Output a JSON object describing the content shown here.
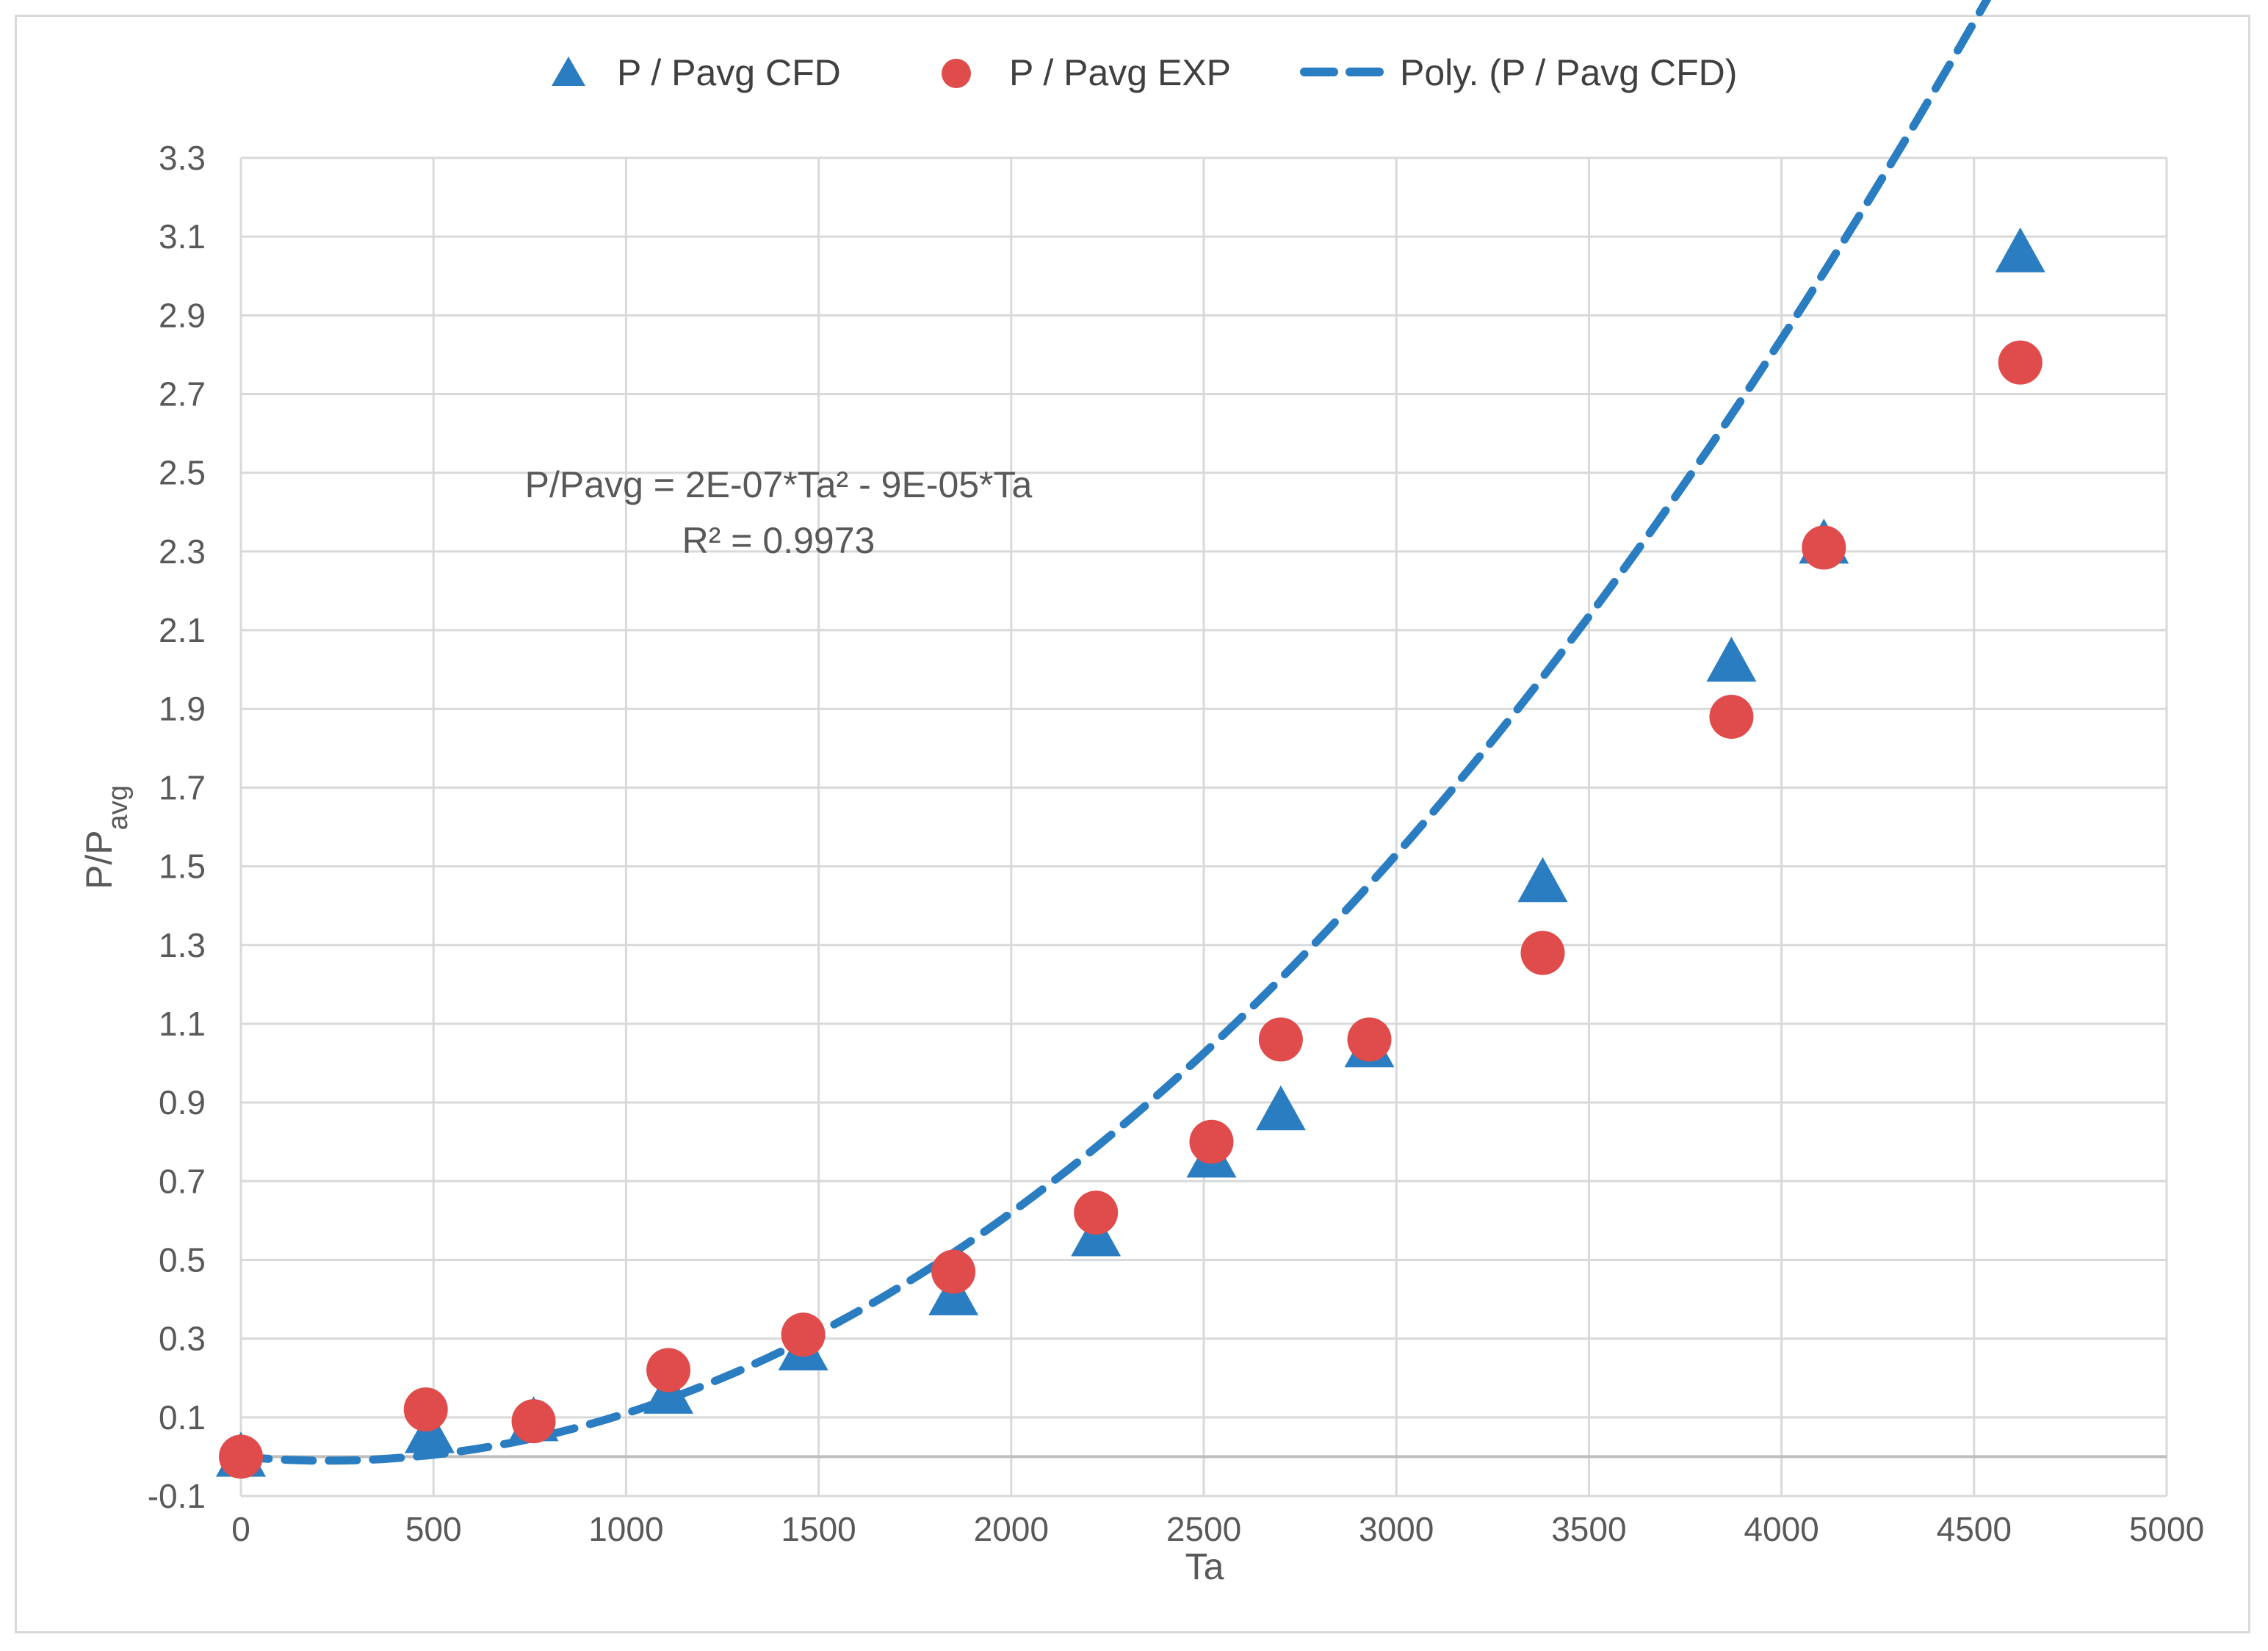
{
  "chart_data": {
    "type": "scatter",
    "title": "",
    "xlabel": "Ta",
    "ylabel": "P/P",
    "ylabel_sub": "avg",
    "xlim": [
      0,
      5000
    ],
    "ylim": [
      -0.1,
      3.3
    ],
    "x_ticks": [
      0,
      500,
      1000,
      1500,
      2000,
      2500,
      3000,
      3500,
      4000,
      4500,
      5000
    ],
    "y_ticks": [
      -0.1,
      0.1,
      0.3,
      0.5,
      0.7,
      0.9,
      1.1,
      1.3,
      1.5,
      1.7,
      1.9,
      2.1,
      2.3,
      2.5,
      2.7,
      2.9,
      3.1,
      3.3
    ],
    "grid": true,
    "legend_position": "top",
    "series": [
      {
        "name": "P / Pavg CFD",
        "marker": "triangle",
        "color": "#2a7dc1",
        "points": [
          [
            0,
            0.0
          ],
          [
            490,
            0.06
          ],
          [
            760,
            0.09
          ],
          [
            1110,
            0.16
          ],
          [
            1460,
            0.27
          ],
          [
            1850,
            0.41
          ],
          [
            2220,
            0.56
          ],
          [
            2520,
            0.76
          ],
          [
            2700,
            0.88
          ],
          [
            2930,
            1.04
          ],
          [
            3380,
            1.46
          ],
          [
            3870,
            2.02
          ],
          [
            4110,
            2.32
          ],
          [
            4620,
            3.06
          ]
        ]
      },
      {
        "name": "P / Pavg EXP",
        "marker": "circle",
        "color": "#e04b4b",
        "points": [
          [
            0,
            0.0
          ],
          [
            480,
            0.12
          ],
          [
            760,
            0.09
          ],
          [
            1110,
            0.22
          ],
          [
            1460,
            0.31
          ],
          [
            1850,
            0.47
          ],
          [
            2220,
            0.62
          ],
          [
            2520,
            0.8
          ],
          [
            2700,
            1.06
          ],
          [
            2930,
            1.06
          ],
          [
            3380,
            1.28
          ],
          [
            3870,
            1.88
          ],
          [
            4110,
            2.31
          ],
          [
            4620,
            2.78
          ]
        ]
      },
      {
        "name": "Poly. (P / Pavg CFD)",
        "marker": "dashed-line",
        "color": "#2a7dc1",
        "trend": {
          "a": 2e-07,
          "b": -9e-05,
          "x_from": 0,
          "x_to": 4620
        }
      }
    ],
    "annotations": {
      "equation": "P/Pavg = 2E-07*Ta² - 9E-05*Ta",
      "r_squared": "R² = 0.9973"
    }
  }
}
